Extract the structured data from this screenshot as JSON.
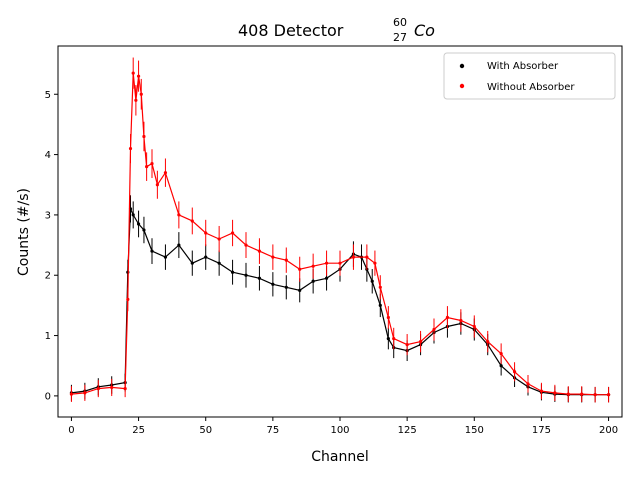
{
  "chart_data": {
    "type": "scatter",
    "title": {
      "text": "408 Detector",
      "isotope_mass": "60",
      "isotope_atomic": "27",
      "isotope_symbol": "Co"
    },
    "xlabel": "Channel",
    "ylabel": "Counts (#/s)",
    "xlim": [
      -5,
      205
    ],
    "ylim": [
      -0.35,
      5.8
    ],
    "xticks": [
      0,
      25,
      50,
      75,
      100,
      125,
      150,
      175,
      200
    ],
    "yticks": [
      0,
      1,
      2,
      3,
      4,
      5
    ],
    "legend_position": "upper right",
    "grid": false,
    "series": [
      {
        "name": "With Absorber",
        "color": "#000000",
        "points": [
          [
            0,
            0.05
          ],
          [
            5,
            0.08
          ],
          [
            10,
            0.15
          ],
          [
            15,
            0.18
          ],
          [
            20,
            0.22
          ],
          [
            21,
            2.05
          ],
          [
            22,
            3.1
          ],
          [
            23,
            3.0
          ],
          [
            25,
            2.85
          ],
          [
            27,
            2.75
          ],
          [
            30,
            2.4
          ],
          [
            35,
            2.3
          ],
          [
            40,
            2.5
          ],
          [
            45,
            2.2
          ],
          [
            50,
            2.3
          ],
          [
            55,
            2.2
          ],
          [
            60,
            2.05
          ],
          [
            65,
            2.0
          ],
          [
            70,
            1.95
          ],
          [
            75,
            1.85
          ],
          [
            80,
            1.8
          ],
          [
            85,
            1.75
          ],
          [
            90,
            1.9
          ],
          [
            95,
            1.95
          ],
          [
            100,
            2.1
          ],
          [
            105,
            2.35
          ],
          [
            108,
            2.3
          ],
          [
            110,
            2.1
          ],
          [
            112,
            1.9
          ],
          [
            115,
            1.5
          ],
          [
            118,
            0.95
          ],
          [
            120,
            0.8
          ],
          [
            125,
            0.75
          ],
          [
            130,
            0.85
          ],
          [
            135,
            1.05
          ],
          [
            140,
            1.15
          ],
          [
            145,
            1.2
          ],
          [
            150,
            1.1
          ],
          [
            155,
            0.85
          ],
          [
            160,
            0.5
          ],
          [
            165,
            0.3
          ],
          [
            170,
            0.15
          ],
          [
            175,
            0.06
          ],
          [
            180,
            0.03
          ],
          [
            185,
            0.02
          ],
          [
            190,
            0.02
          ],
          [
            195,
            0.02
          ],
          [
            200,
            0.02
          ]
        ]
      },
      {
        "name": "Without Absorber",
        "color": "#ff0000",
        "points": [
          [
            0,
            0.03
          ],
          [
            5,
            0.05
          ],
          [
            10,
            0.12
          ],
          [
            15,
            0.14
          ],
          [
            20,
            0.12
          ],
          [
            21,
            1.6
          ],
          [
            22,
            4.1
          ],
          [
            23,
            5.35
          ],
          [
            24,
            4.9
          ],
          [
            25,
            5.3
          ],
          [
            26,
            5.0
          ],
          [
            27,
            4.3
          ],
          [
            28,
            3.8
          ],
          [
            30,
            3.85
          ],
          [
            32,
            3.5
          ],
          [
            35,
            3.7
          ],
          [
            40,
            3.0
          ],
          [
            45,
            2.9
          ],
          [
            50,
            2.7
          ],
          [
            55,
            2.6
          ],
          [
            60,
            2.7
          ],
          [
            65,
            2.5
          ],
          [
            70,
            2.4
          ],
          [
            75,
            2.3
          ],
          [
            80,
            2.25
          ],
          [
            85,
            2.1
          ],
          [
            90,
            2.15
          ],
          [
            95,
            2.2
          ],
          [
            100,
            2.2
          ],
          [
            105,
            2.3
          ],
          [
            110,
            2.3
          ],
          [
            113,
            2.2
          ],
          [
            115,
            1.8
          ],
          [
            118,
            1.3
          ],
          [
            120,
            0.95
          ],
          [
            125,
            0.85
          ],
          [
            130,
            0.9
          ],
          [
            135,
            1.1
          ],
          [
            140,
            1.3
          ],
          [
            145,
            1.25
          ],
          [
            150,
            1.15
          ],
          [
            155,
            0.9
          ],
          [
            160,
            0.7
          ],
          [
            165,
            0.4
          ],
          [
            170,
            0.2
          ],
          [
            175,
            0.08
          ],
          [
            180,
            0.05
          ],
          [
            185,
            0.03
          ],
          [
            190,
            0.03
          ],
          [
            195,
            0.02
          ],
          [
            200,
            0.02
          ]
        ]
      }
    ]
  }
}
